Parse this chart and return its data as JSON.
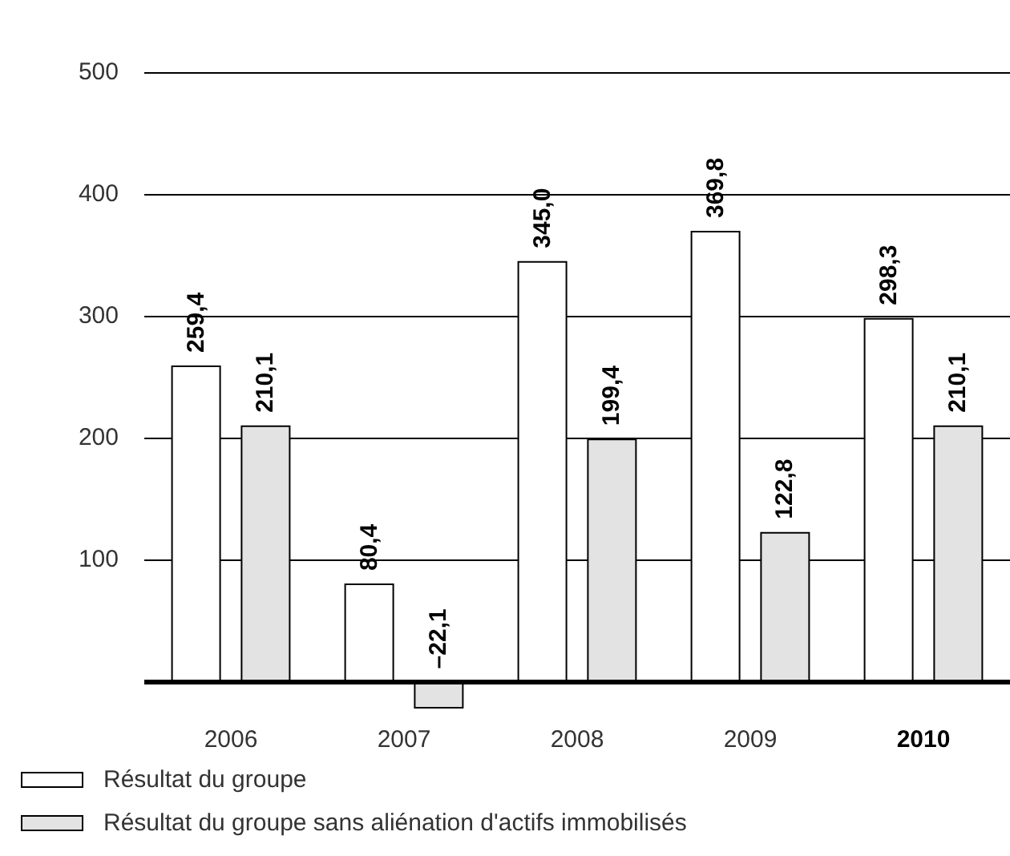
{
  "chart_data": {
    "type": "bar",
    "categories": [
      "2006",
      "2007",
      "2008",
      "2009",
      "2010"
    ],
    "series": [
      {
        "name": "Résultat du groupe",
        "color": "#ffffff",
        "values": [
          259.4,
          80.4,
          345.0,
          369.8,
          298.3
        ],
        "value_labels": [
          "259,4",
          "80,4",
          "345,0",
          "369,8",
          "298,3"
        ]
      },
      {
        "name": "Résultat du groupe sans aliénation d'actifs immobilisés",
        "color": "#e3e3e3",
        "values": [
          210.1,
          -22.1,
          199.4,
          122.8,
          210.1
        ],
        "value_labels": [
          "210,1",
          "–22,1",
          "199,4",
          "122,8",
          "210,1"
        ]
      }
    ],
    "ylim": [
      -22.1,
      500
    ],
    "yticks": [
      {
        "value": 0,
        "label": null
      },
      100,
      200,
      300,
      400,
      500
    ],
    "grid": "y",
    "legend": "bottom left"
  }
}
